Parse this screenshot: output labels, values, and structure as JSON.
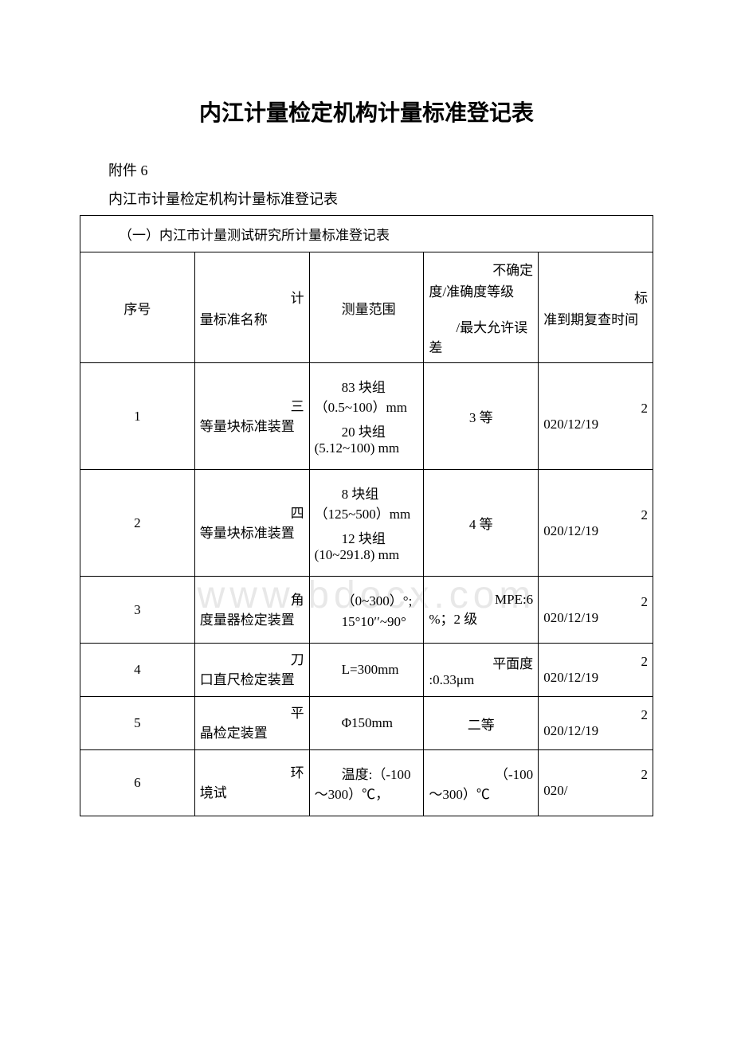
{
  "title": "内江计量检定机构计量标准登记表",
  "attachment": "附件 6",
  "subtitle": "内江市计量检定机构计量标准登记表",
  "section_header": "（一）内江市计量测试研究所计量标准登记表",
  "watermark": "www.bdocx.com",
  "columns": {
    "seq": "序号",
    "name_first": "计",
    "name_rest": "量标准名称",
    "range_first": "",
    "range": "测量范围",
    "uncert_first": "不确定",
    "uncert_rest1": "度/准确度等级",
    "uncert_rest2": "/最大允许误差",
    "date_first": "标",
    "date_rest": "准到期复查时间"
  },
  "rows": [
    {
      "seq": "1",
      "name_first": "三",
      "name_rest": "等量块标准装置",
      "range_line1": "83 块组（0.5~100）mm",
      "range_line2": "20 块组(5.12~100) mm",
      "uncert_first": "",
      "uncert_rest": "3 等",
      "date_first": "2",
      "date_rest": "020/12/19"
    },
    {
      "seq": "2",
      "name_first": "四",
      "name_rest": "等量块标准装置",
      "range_line1": "8 块组（125~500）mm",
      "range_line2": "12 块组(10~291.8) mm",
      "uncert_first": "",
      "uncert_rest": "4 等",
      "date_first": "2",
      "date_rest": "020/12/19"
    },
    {
      "seq": "3",
      "name_first": "角",
      "name_rest": "度量器检定装置",
      "range_line1": "（0~300）°;",
      "range_line2": "15°10′′~90°",
      "uncert_first": "MPE:6",
      "uncert_rest": "%；2 级",
      "date_first": "2",
      "date_rest": "020/12/19"
    },
    {
      "seq": "4",
      "name_first": "刀",
      "name_rest": "口直尺检定装置",
      "range_line1": "L=300mm",
      "range_line2": "",
      "uncert_first": "平面度",
      "uncert_rest": ":0.33μm",
      "date_first": "2",
      "date_rest": "020/12/19"
    },
    {
      "seq": "5",
      "name_first": "平",
      "name_rest": "晶检定装置",
      "range_line1": "Φ150mm",
      "range_line2": "",
      "uncert_first": "",
      "uncert_rest": "二等",
      "date_first": "2",
      "date_rest": "020/12/19"
    },
    {
      "seq": "6",
      "name_first": "环",
      "name_rest": "境试",
      "range_line1": "温度:（-100～300）℃，",
      "range_line2": "",
      "uncert_first": "（-100",
      "uncert_rest": "～300）℃",
      "date_first": "2",
      "date_rest": "020/"
    }
  ]
}
